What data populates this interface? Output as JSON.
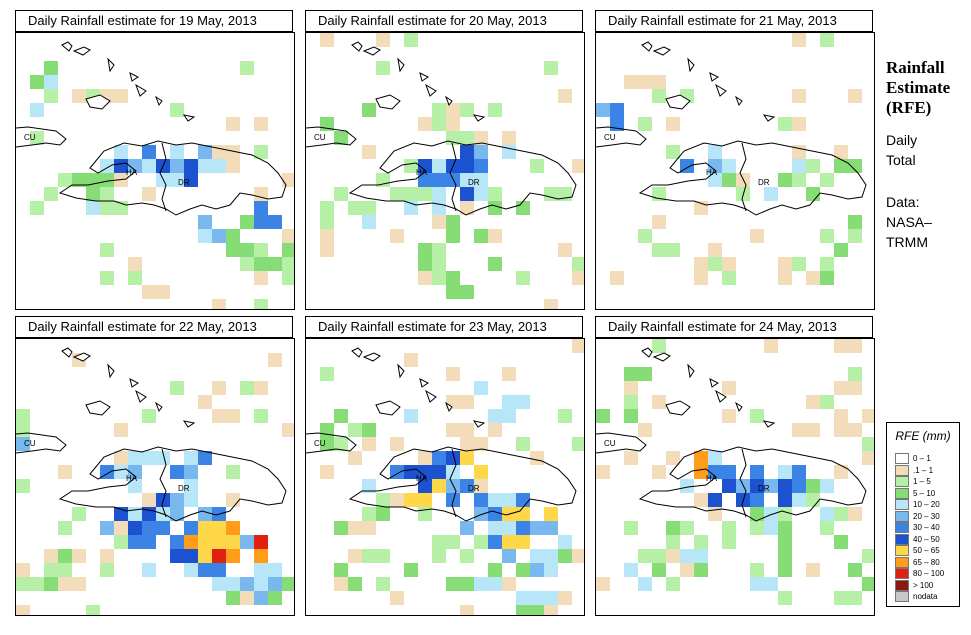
{
  "panels": [
    {
      "title": "Daily Rainfall estimate for  19 May, 2013"
    },
    {
      "title": "Daily Rainfall estimate for  20 May, 2013"
    },
    {
      "title": "Daily Rainfall estimate for  21 May, 2013"
    },
    {
      "title": "Daily Rainfall estimate for  22 May, 2013"
    },
    {
      "title": "Daily Rainfall estimate for  23 May, 2013"
    },
    {
      "title": "Daily Rainfall estimate for  24 May, 2013"
    }
  ],
  "map_labels": {
    "cuba": "CU",
    "haiti": "HA",
    "dominican_republic": "DR"
  },
  "side": {
    "title_line1": "Rainfall",
    "title_line2": "Estimate",
    "title_line3": "(RFE)",
    "period_line1": "Daily",
    "period_line2": "Total",
    "source_line1": "Data:",
    "source_line2": "NASA–",
    "source_line3": "TRMM"
  },
  "legend": {
    "title": "RFE (mm)",
    "items": [
      {
        "label": "0 – 1",
        "color": "#ffffff"
      },
      {
        "label": ".1 – 1",
        "color": "#f2dcb9"
      },
      {
        "label": "1 – 5",
        "color": "#b6f0a6"
      },
      {
        "label": "5 – 10",
        "color": "#86dd76"
      },
      {
        "label": "10 – 20",
        "color": "#b6e6f8"
      },
      {
        "label": "20 – 30",
        "color": "#78b8ef"
      },
      {
        "label": "30 – 40",
        "color": "#3b84e6"
      },
      {
        "label": "40 – 50",
        "color": "#1c52cf"
      },
      {
        "label": "50 – 65",
        "color": "#ffd84a"
      },
      {
        "label": "65 – 80",
        "color": "#ff9c1a"
      },
      {
        "label": "80 – 100",
        "color": "#e02010"
      },
      {
        "label": "> 100",
        "color": "#8a1a10"
      },
      {
        "label": "nodata",
        "color": "#c8c8c8"
      }
    ]
  }
}
